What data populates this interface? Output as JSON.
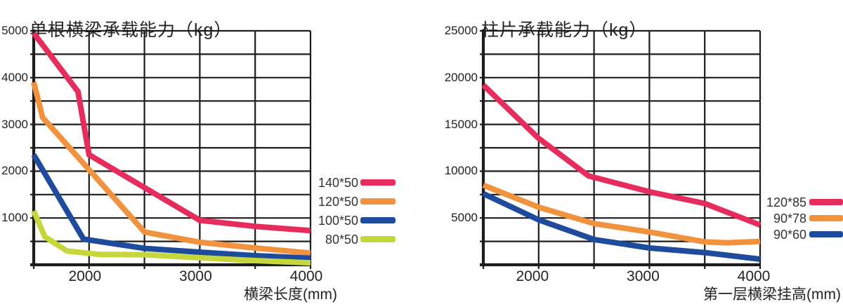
{
  "palette": {
    "pink": "#E62C5C",
    "orange": "#F0923E",
    "blue": "#1E4B9B",
    "green": "#C5D73B",
    "grid": "#1C1C1C",
    "text": "#232323"
  },
  "chart_data": [
    {
      "type": "line",
      "title": "单根横梁承载能力（kg）",
      "xlabel": "横梁长度(mm)",
      "ylabel": "",
      "xlim": [
        1500,
        4000
      ],
      "ylim": [
        0,
        5000
      ],
      "x_grid_step": 500,
      "y_grid_step": 500,
      "grid": true,
      "legend_position": "right",
      "x_tick_values": [
        2000,
        3000,
        4000
      ],
      "x_tick_labels": [
        "2000",
        "3000",
        "4000"
      ],
      "y_tick_values": [
        1000,
        2000,
        3000,
        4000,
        5000
      ],
      "y_tick_labels": [
        "1000",
        "2000",
        "3000",
        "4000",
        "5000"
      ],
      "series": [
        {
          "name": "140*50",
          "color": "#E62C5C",
          "points": [
            [
              1500,
              4950
            ],
            [
              1900,
              3700
            ],
            [
              2000,
              2350
            ],
            [
              2500,
              1650
            ],
            [
              3000,
              950
            ],
            [
              3500,
              820
            ],
            [
              4000,
              730
            ]
          ]
        },
        {
          "name": "120*50",
          "color": "#F0923E",
          "points": [
            [
              1500,
              3900
            ],
            [
              1580,
              3150
            ],
            [
              2500,
              700
            ],
            [
              3000,
              480
            ],
            [
              3500,
              360
            ],
            [
              4000,
              250
            ]
          ]
        },
        {
          "name": "100*50",
          "color": "#1E4B9B",
          "points": [
            [
              1500,
              2350
            ],
            [
              1950,
              550
            ],
            [
              2500,
              350
            ],
            [
              3000,
              270
            ],
            [
              3500,
              195
            ],
            [
              4000,
              140
            ]
          ]
        },
        {
          "name": "80*50",
          "color": "#C5D73B",
          "points": [
            [
              1500,
              1150
            ],
            [
              1600,
              600
            ],
            [
              1800,
              295
            ],
            [
              2100,
              220
            ],
            [
              2500,
              215
            ],
            [
              3000,
              150
            ],
            [
              3500,
              90
            ],
            [
              4000,
              40
            ]
          ]
        }
      ]
    },
    {
      "type": "line",
      "title": "柱片承载能力（kg）",
      "xlabel": "第一层横梁挂高(mm)",
      "ylabel": "",
      "xlim": [
        1500,
        4000
      ],
      "ylim": [
        0,
        25000
      ],
      "x_grid_step": 500,
      "y_grid_step": 2500,
      "grid": true,
      "legend_position": "right",
      "x_tick_values": [
        2000,
        3000,
        4000
      ],
      "x_tick_labels": [
        "2000",
        "3000",
        "4000"
      ],
      "y_tick_values": [
        5000,
        10000,
        15000,
        20000,
        25000
      ],
      "y_tick_labels": [
        "5000",
        "10000",
        "15000",
        "20000",
        "25000"
      ],
      "series": [
        {
          "name": "120*85",
          "color": "#E62C5C",
          "points": [
            [
              1500,
              19200
            ],
            [
              2000,
              13500
            ],
            [
              2450,
              9500
            ],
            [
              3000,
              7800
            ],
            [
              3500,
              6550
            ],
            [
              4000,
              4250
            ]
          ]
        },
        {
          "name": "90*78",
          "color": "#F0923E",
          "points": [
            [
              1500,
              8500
            ],
            [
              2000,
              6150
            ],
            [
              2500,
              4400
            ],
            [
              3000,
              3500
            ],
            [
              3500,
              2450
            ],
            [
              3700,
              2350
            ],
            [
              4000,
              2500
            ]
          ]
        },
        {
          "name": "90*60",
          "color": "#1E4B9B",
          "points": [
            [
              1500,
              7600
            ],
            [
              2000,
              4800
            ],
            [
              2500,
              2700
            ],
            [
              3000,
              1800
            ],
            [
              3500,
              1300
            ],
            [
              4000,
              600
            ]
          ]
        }
      ]
    }
  ]
}
